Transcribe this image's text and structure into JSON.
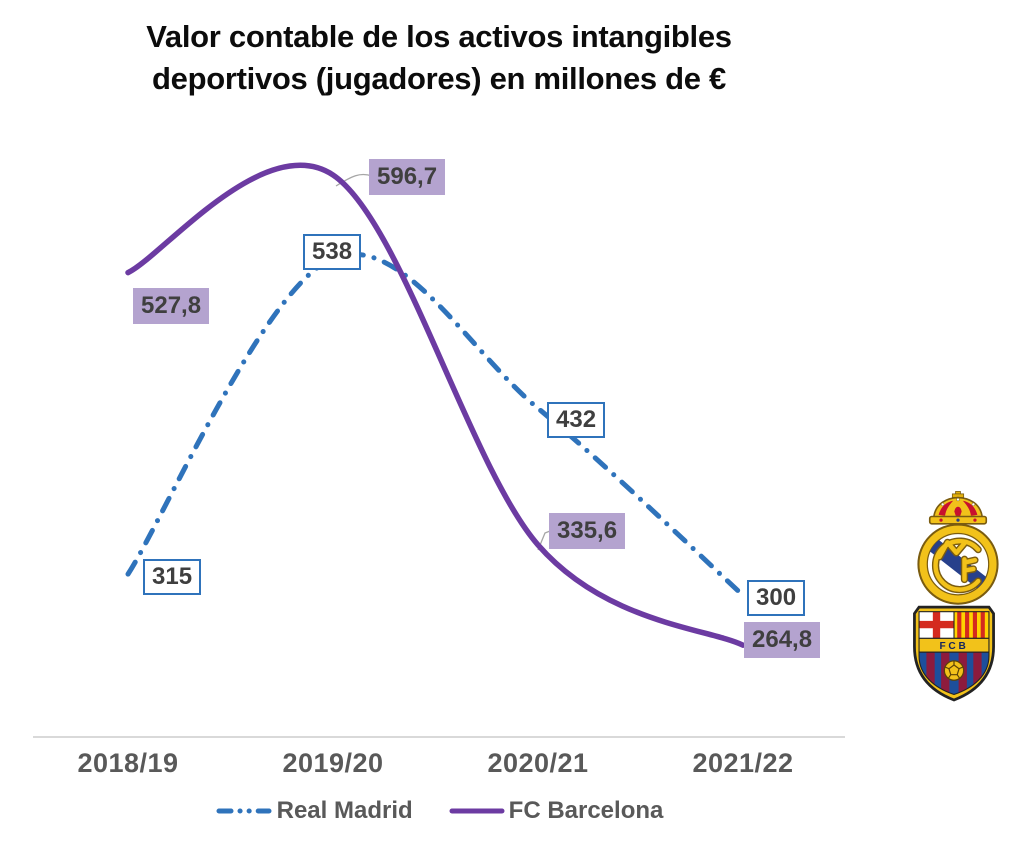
{
  "chart_data": {
    "type": "line",
    "title": "Valor contable de los activos intangibles deportivos (jugadores) en millones de €",
    "title_lines": [
      "Valor contable de los activos intangibles",
      "deportivos (jugadores) en millones de €"
    ],
    "unit": "millones de €",
    "categories": [
      "2018/19",
      "2019/20",
      "2020/21",
      "2021/22"
    ],
    "series": [
      {
        "name": "Real Madrid",
        "color": "#2f73bb",
        "line_style": "dash-dot",
        "values": [
          315,
          538,
          432,
          300
        ],
        "data_labels": [
          "315",
          "538",
          "432",
          "300"
        ],
        "label_box": {
          "fill": "#ffffff",
          "border": "#2f73bb",
          "text": "#3f3f3f"
        }
      },
      {
        "name": "FC Barcelona",
        "color": "#6c3ba2",
        "line_style": "solid",
        "values": [
          527.8,
          596.7,
          335.6,
          264.8
        ],
        "data_labels": [
          "527,8",
          "596,7",
          "335,6",
          "264,8"
        ],
        "label_box": {
          "fill": "#b4a3cf",
          "border": "none",
          "text": "#3f3f3f"
        }
      }
    ],
    "legend_position": "bottom",
    "x_axis": {
      "line_color": "#d9d9d9",
      "tick_text_color": "#595959"
    },
    "y_axis": {
      "visible": false
    },
    "grid": false
  },
  "logos": {
    "real_madrid": "Real Madrid crest",
    "fc_barcelona": "FC Barcelona crest"
  }
}
